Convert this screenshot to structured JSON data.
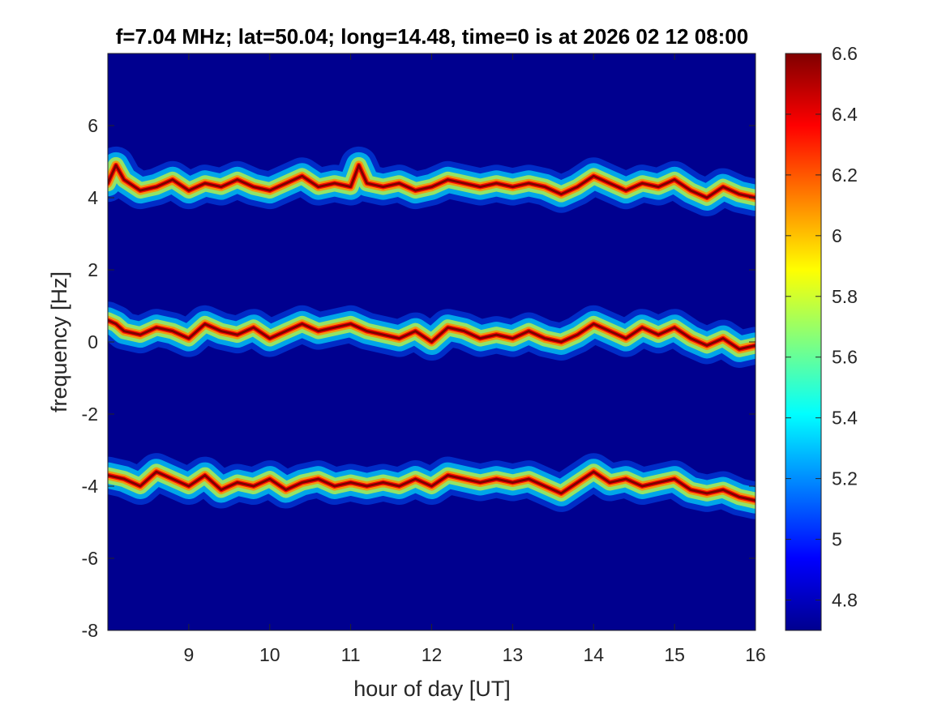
{
  "chart_data": {
    "type": "heatmap",
    "title": "f=7.04 MHz;  lat=50.04; long=14.48, time=0 is at 2026 02 12 08:00",
    "xlabel": "hour of day [UT]",
    "ylabel": "frequency [Hz]",
    "xlim": [
      8,
      16
    ],
    "ylim": [
      -8,
      8
    ],
    "xticks": [
      9,
      10,
      11,
      12,
      13,
      14,
      15,
      16
    ],
    "xtick_labels": [
      "9",
      "10",
      "11",
      "12",
      "13",
      "14",
      "15",
      "16"
    ],
    "yticks": [
      -8,
      -6,
      -4,
      -2,
      0,
      2,
      4,
      6
    ],
    "ytick_labels": [
      "-8",
      "-6",
      "-4",
      "-2",
      "0",
      "2",
      "4",
      "6"
    ],
    "colormap": "jet",
    "clim": [
      4.7,
      6.6
    ],
    "colorbar_ticks": [
      4.8,
      5,
      5.2,
      5.4,
      5.6,
      5.8,
      6,
      6.2,
      6.4,
      6.6
    ],
    "colorbar_tick_labels": [
      "4.8",
      "5",
      "5.2",
      "5.4",
      "5.6",
      "5.8",
      "6",
      "6.2",
      "6.4",
      "6.6"
    ],
    "background_value": 4.7,
    "traces": [
      {
        "x": [
          8,
          8.1,
          8.2,
          8.4,
          8.6,
          8.8,
          9,
          9.2,
          9.4,
          9.6,
          9.8,
          10,
          10.2,
          10.4,
          10.6,
          10.8,
          11,
          11.1,
          11.2,
          11.4,
          11.6,
          11.8,
          12,
          12.2,
          12.4,
          12.6,
          12.8,
          13,
          13.2,
          13.4,
          13.6,
          13.8,
          14,
          14.2,
          14.4,
          14.6,
          14.8,
          15,
          15.2,
          15.4,
          15.6,
          15.8,
          16
        ],
        "y": [
          4.4,
          4.9,
          4.5,
          4.2,
          4.3,
          4.5,
          4.2,
          4.4,
          4.3,
          4.5,
          4.3,
          4.2,
          4.4,
          4.6,
          4.3,
          4.4,
          4.3,
          4.9,
          4.4,
          4.3,
          4.4,
          4.2,
          4.3,
          4.5,
          4.4,
          4.3,
          4.4,
          4.3,
          4.4,
          4.3,
          4.1,
          4.3,
          4.6,
          4.4,
          4.2,
          4.4,
          4.3,
          4.5,
          4.2,
          4.0,
          4.3,
          4.1,
          4.0
        ],
        "peak": 6.6
      },
      {
        "x": [
          8,
          8.1,
          8.2,
          8.4,
          8.6,
          8.8,
          9,
          9.2,
          9.4,
          9.6,
          9.8,
          10,
          10.2,
          10.4,
          10.6,
          10.8,
          11,
          11.2,
          11.4,
          11.6,
          11.8,
          12,
          12.2,
          12.4,
          12.6,
          12.8,
          13,
          13.2,
          13.4,
          13.6,
          13.8,
          14,
          14.2,
          14.4,
          14.6,
          14.8,
          15,
          15.2,
          15.4,
          15.6,
          15.8,
          16
        ],
        "y": [
          0.6,
          0.5,
          0.3,
          0.2,
          0.4,
          0.3,
          0.1,
          0.5,
          0.3,
          0.2,
          0.4,
          0.1,
          0.3,
          0.5,
          0.3,
          0.4,
          0.5,
          0.3,
          0.2,
          0.1,
          0.3,
          0.0,
          0.4,
          0.3,
          0.1,
          0.2,
          0.1,
          0.3,
          0.1,
          0.0,
          0.2,
          0.5,
          0.3,
          0.1,
          0.4,
          0.2,
          0.4,
          0.1,
          -0.1,
          0.1,
          -0.2,
          -0.1
        ],
        "peak": 6.6
      },
      {
        "x": [
          8,
          8.2,
          8.4,
          8.6,
          8.8,
          9,
          9.2,
          9.4,
          9.6,
          9.8,
          10,
          10.2,
          10.4,
          10.6,
          10.8,
          11,
          11.2,
          11.4,
          11.6,
          11.8,
          12,
          12.2,
          12.4,
          12.6,
          12.8,
          13,
          13.2,
          13.4,
          13.6,
          13.8,
          14,
          14.2,
          14.4,
          14.6,
          14.8,
          15,
          15.2,
          15.4,
          15.6,
          15.8,
          16
        ],
        "y": [
          -3.7,
          -3.8,
          -4.0,
          -3.6,
          -3.8,
          -4.0,
          -3.7,
          -4.1,
          -3.9,
          -4.0,
          -3.8,
          -4.1,
          -3.9,
          -3.8,
          -4.0,
          -3.9,
          -4.0,
          -3.9,
          -4.0,
          -3.8,
          -4.0,
          -3.7,
          -3.8,
          -3.9,
          -3.8,
          -3.9,
          -3.8,
          -4.0,
          -4.2,
          -3.9,
          -3.6,
          -3.9,
          -3.8,
          -4.0,
          -3.9,
          -3.8,
          -4.1,
          -4.2,
          -4.1,
          -4.3,
          -4.4
        ],
        "peak": 6.6
      }
    ]
  }
}
